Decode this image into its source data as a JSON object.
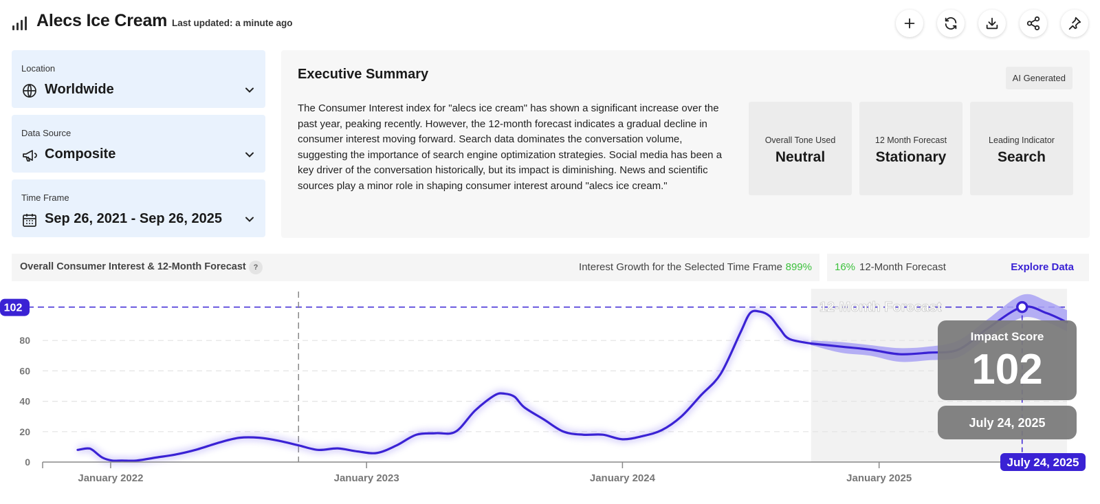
{
  "header": {
    "title": "Alecs Ice Cream",
    "last_updated": "Last updated: a minute ago",
    "actions": [
      {
        "name": "add-button",
        "icon": "plus-icon"
      },
      {
        "name": "refresh-button",
        "icon": "refresh-icon"
      },
      {
        "name": "download-button",
        "icon": "download-icon"
      },
      {
        "name": "share-button",
        "icon": "share-icon"
      },
      {
        "name": "pin-button",
        "icon": "pin-icon"
      }
    ]
  },
  "filters": {
    "location": {
      "label": "Location",
      "value": "Worldwide",
      "icon": "globe-icon"
    },
    "data_source": {
      "label": "Data Source",
      "value": "Composite",
      "icon": "megaphone-icon"
    },
    "time_frame": {
      "label": "Time Frame",
      "value": "Sep 26, 2021 - Sep 26, 2025",
      "icon": "calendar-icon"
    }
  },
  "summary": {
    "title": "Executive Summary",
    "badge": "AI Generated",
    "text": "The Consumer Interest index for \"alecs ice cream\" has shown a significant increase over the past year, peaking recently. However, the 12-month forecast indicates a gradual decline in consumer interest moving forward. Search data dominates the conversation volume, suggesting the importance of search engine optimization strategies. Social media has been a key driver of the conversation historically, but its impact is diminishing. News and scientific sources play a minor role in shaping consumer interest around \"alecs ice cream.\"",
    "kpis": [
      {
        "label": "Overall Tone Used",
        "value": "Neutral"
      },
      {
        "label": "12 Month Forecast",
        "value": "Stationary"
      },
      {
        "label": "Leading Indicator",
        "value": "Search"
      }
    ]
  },
  "stats": {
    "chart_title": "Overall Consumer Interest & 12-Month Forecast",
    "help": "?",
    "growth_label": "Interest Growth for the Selected Time Frame",
    "growth_value": "899%",
    "forecast_value": "16%",
    "forecast_label": "12-Month Forecast",
    "explore_label": "Explore Data"
  },
  "colors": {
    "accent": "#3a22d4",
    "positive": "#3cc13c",
    "forecast_band": "#a9a2f5",
    "filter_bg": "#e9f2fd"
  },
  "chart_data": {
    "type": "line",
    "ylim": [
      0,
      110
    ],
    "y_ticks": [
      0,
      20,
      40,
      60,
      80
    ],
    "y_tick_labels": [
      "0",
      "20",
      "40",
      "60",
      "80"
    ],
    "x_ticks": [
      "2022-01-01",
      "2023-01-01",
      "2024-01-01",
      "2025-01-01"
    ],
    "x_tick_labels": [
      "January 2022",
      "January 2023",
      "January 2024",
      "January 2025"
    ],
    "x_range": [
      "2021-09-26",
      "2025-09-26"
    ],
    "grid": true,
    "reference_line_value": 102,
    "reference_line_label": "102",
    "marker_date": "2022-09-26",
    "forecast_label": "12-Month Forecast",
    "forecast_start": "2024-09-26",
    "series": [
      {
        "type": "history",
        "x": [
          "2021-11-15",
          "2021-11-29",
          "2021-12-06",
          "2021-12-20",
          "2022-01-03",
          "2022-01-17",
          "2022-02-07",
          "2022-03-07",
          "2022-04-04",
          "2022-05-02",
          "2022-06-06",
          "2022-07-04",
          "2022-08-01",
          "2022-08-29",
          "2022-09-26",
          "2022-10-24",
          "2022-11-21",
          "2022-12-19",
          "2023-01-16",
          "2023-02-13",
          "2023-03-13",
          "2023-04-10",
          "2023-05-08",
          "2023-06-05",
          "2023-07-03",
          "2023-07-17",
          "2023-07-31",
          "2023-08-14",
          "2023-09-11",
          "2023-10-09",
          "2023-11-06",
          "2023-12-04",
          "2024-01-01",
          "2024-01-29",
          "2024-02-26",
          "2024-03-25",
          "2024-04-22",
          "2024-05-20",
          "2024-06-17",
          "2024-07-01",
          "2024-07-15",
          "2024-07-29",
          "2024-08-12",
          "2024-08-26",
          "2024-09-26"
        ],
        "values": [
          8,
          9,
          8,
          3,
          1,
          1,
          1,
          3,
          5,
          8,
          13,
          16,
          16,
          14,
          11,
          8,
          9,
          7,
          6,
          11,
          18,
          19,
          20,
          34,
          44,
          45,
          43,
          36,
          28,
          20,
          18,
          18,
          15,
          17,
          21,
          30,
          44,
          58,
          85,
          98,
          99,
          96,
          88,
          81,
          78
        ]
      },
      {
        "type": "forecast",
        "x": [
          "2024-09-26",
          "2024-11-07",
          "2024-12-19",
          "2025-01-30",
          "2025-03-13",
          "2025-04-24",
          "2025-06-05",
          "2025-07-24",
          "2025-08-28",
          "2025-09-26"
        ],
        "values": [
          78,
          76,
          74,
          71,
          72,
          74,
          88,
          102,
          98,
          92
        ],
        "lower": [
          77,
          72,
          70,
          66,
          67,
          69,
          82,
          95,
          92,
          86
        ],
        "upper": [
          80,
          79,
          77,
          75,
          76,
          80,
          94,
          110,
          106,
          100
        ]
      }
    ],
    "tooltip": {
      "title": "Impact Score",
      "value": "102",
      "date": "July 24, 2025",
      "axis_label": "July 24, 2025"
    }
  }
}
